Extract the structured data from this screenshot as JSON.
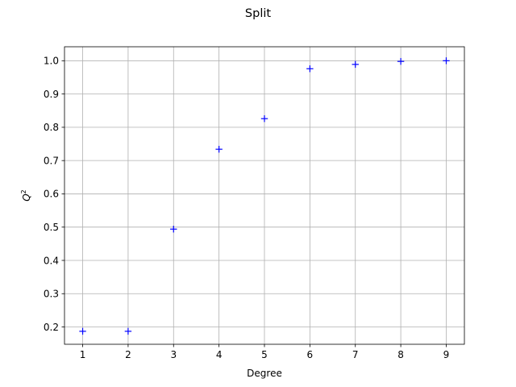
{
  "chart_data": {
    "type": "scatter",
    "title": "Split",
    "xlabel": "Degree",
    "ylabel": "Q",
    "ylabel_superscript": "2",
    "xlim": [
      0.6,
      9.4
    ],
    "ylim": [
      0.148,
      1.042
    ],
    "x_ticks": [
      1,
      2,
      3,
      4,
      5,
      6,
      7,
      8,
      9
    ],
    "y_ticks": [
      0.2,
      0.3,
      0.4,
      0.5,
      0.6,
      0.7,
      0.8,
      0.9,
      1.0
    ],
    "y_tick_labels": [
      "0.2",
      "0.3",
      "0.4",
      "0.5",
      "0.6",
      "0.7",
      "0.8",
      "0.9",
      "1.0"
    ],
    "grid": true,
    "marker": "+",
    "color": "#0000ff",
    "x": [
      1,
      2,
      3,
      4,
      5,
      6,
      7,
      8,
      9
    ],
    "y": [
      0.187,
      0.187,
      0.494,
      0.734,
      0.826,
      0.976,
      0.989,
      0.998,
      1.0
    ]
  }
}
